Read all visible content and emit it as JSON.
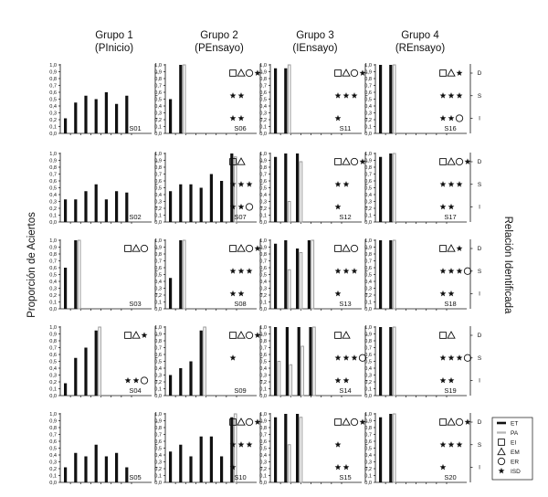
{
  "figure": {
    "ylabel": "Proporción de Aciertos",
    "right_label": "Relación Identificada",
    "relation_ticks": [
      "D",
      "S",
      "I"
    ],
    "yticks": [
      "1,0",
      "0,9",
      "0,8",
      "0,7",
      "0,6",
      "0,5",
      "0,4",
      "0,3",
      "0,2",
      "0,1",
      "0,0"
    ]
  },
  "groups": [
    {
      "title": "Grupo 1",
      "subtitle": "(PInicio)"
    },
    {
      "title": "Grupo 2",
      "subtitle": "(PEnsayo)"
    },
    {
      "title": "Grupo 3",
      "subtitle": "(IEnsayo)"
    },
    {
      "title": "Grupo 4",
      "subtitle": "(REnsayo)"
    }
  ],
  "legend": [
    {
      "label": "ET",
      "symbol": "thick-bar"
    },
    {
      "label": "PA",
      "symbol": "thin-bar"
    },
    {
      "label": "EI",
      "symbol": "square"
    },
    {
      "label": "EM",
      "symbol": "triangle"
    },
    {
      "label": "ER",
      "symbol": "circle"
    },
    {
      "label": "ISD",
      "symbol": "star"
    }
  ],
  "chart_data": {
    "type": "bar",
    "ylim": [
      0,
      1
    ],
    "panels": [
      {
        "subject": "S01",
        "group": 1,
        "row": 1,
        "bars": [
          [
            "ET",
            0.22
          ],
          [
            "ET",
            0.45
          ],
          [
            "ET",
            0.55
          ],
          [
            "ET",
            0.5
          ],
          [
            "ET",
            0.6
          ],
          [
            "ET",
            0.43
          ],
          [
            "ET",
            0.55
          ]
        ],
        "D": [],
        "S": [],
        "I": []
      },
      {
        "subject": "S06",
        "group": 2,
        "row": 1,
        "bars": [
          [
            "ET",
            0.5
          ],
          [
            "ET",
            1.0
          ],
          [
            "PA",
            1.0
          ]
        ],
        "D": [
          "EI",
          "EM",
          "ER",
          "ISD"
        ],
        "S": [
          "ISD",
          "ISD"
        ],
        "I": [
          "ISD",
          "ISD"
        ]
      },
      {
        "subject": "S11",
        "group": 3,
        "row": 1,
        "bars": [
          [
            "ET",
            0.95
          ],
          [
            "ET",
            0.95
          ],
          [
            "PA",
            1.0
          ]
        ],
        "D": [
          "EI",
          "EM",
          "ER",
          "ISD"
        ],
        "S": [
          "ISD",
          "ISD",
          "ISD"
        ],
        "I": [
          "ISD"
        ]
      },
      {
        "subject": "S16",
        "group": 4,
        "row": 1,
        "bars": [
          [
            "ET",
            1.0
          ],
          [
            "ET",
            1.0
          ],
          [
            "PA",
            1.0
          ]
        ],
        "D": [
          "EI",
          "EM",
          "ISD"
        ],
        "S": [
          "ISD",
          "ISD",
          "ISD"
        ],
        "I": [
          "ISD",
          "ISD",
          "ER"
        ]
      },
      {
        "subject": "S02",
        "group": 1,
        "row": 2,
        "bars": [
          [
            "ET",
            0.33
          ],
          [
            "ET",
            0.33
          ],
          [
            "ET",
            0.45
          ],
          [
            "ET",
            0.55
          ],
          [
            "ET",
            0.33
          ],
          [
            "ET",
            0.45
          ],
          [
            "ET",
            0.43
          ]
        ],
        "D": [],
        "S": [],
        "I": []
      },
      {
        "subject": "S07",
        "group": 2,
        "row": 2,
        "bars": [
          [
            "ET",
            0.45
          ],
          [
            "ET",
            0.55
          ],
          [
            "ET",
            0.55
          ],
          [
            "ET",
            0.5
          ],
          [
            "ET",
            0.7
          ],
          [
            "ET",
            0.6
          ],
          [
            "ET",
            1.0
          ],
          [
            "PA",
            0.95
          ]
        ],
        "D": [
          "EI",
          "EM"
        ],
        "S": [
          "ISD",
          "ISD",
          "ISD"
        ],
        "I": [
          "ISD",
          "ISD",
          "ER"
        ]
      },
      {
        "subject": "S12",
        "group": 3,
        "row": 2,
        "bars": [
          [
            "ET",
            0.95
          ],
          [
            "ET",
            1.0
          ],
          [
            "PA",
            0.3
          ],
          [
            "ET",
            1.0
          ],
          [
            "PA",
            0.88
          ]
        ],
        "D": [
          "EI",
          "EM",
          "ER",
          "ISD"
        ],
        "S": [
          "ISD",
          "ISD"
        ],
        "I": [
          "ISD"
        ]
      },
      {
        "subject": "S17",
        "group": 4,
        "row": 2,
        "bars": [
          [
            "ET",
            0.95
          ],
          [
            "ET",
            1.0
          ],
          [
            "PA",
            1.0
          ]
        ],
        "D": [
          "EI",
          "EM",
          "ER",
          "ISD"
        ],
        "S": [
          "ISD",
          "ISD",
          "ISD"
        ],
        "I": [
          "ISD",
          "ISD"
        ]
      },
      {
        "subject": "S03",
        "group": 1,
        "row": 3,
        "bars": [
          [
            "ET",
            0.6
          ],
          [
            "ET",
            1.0
          ],
          [
            "PA",
            1.0
          ]
        ],
        "D": [
          "EI",
          "EM",
          "ER"
        ],
        "S": [],
        "I": []
      },
      {
        "subject": "S08",
        "group": 2,
        "row": 3,
        "bars": [
          [
            "ET",
            0.45
          ],
          [
            "ET",
            1.0
          ],
          [
            "PA",
            1.0
          ]
        ],
        "D": [
          "EI",
          "EM",
          "ER",
          "ISD"
        ],
        "S": [
          "ISD",
          "ISD",
          "ISD"
        ],
        "I": [
          "ISD",
          "ISD"
        ]
      },
      {
        "subject": "S13",
        "group": 3,
        "row": 3,
        "bars": [
          [
            "ET",
            0.95
          ],
          [
            "ET",
            1.0
          ],
          [
            "PA",
            0.57
          ],
          [
            "ET",
            0.88
          ],
          [
            "PA",
            0.82
          ],
          [
            "ET",
            1.0
          ],
          [
            "PA",
            1.0
          ]
        ],
        "D": [
          "EI",
          "EM",
          "ER"
        ],
        "S": [
          "ISD",
          "ISD",
          "ISD"
        ],
        "I": [
          "ISD"
        ]
      },
      {
        "subject": "S18",
        "group": 4,
        "row": 3,
        "bars": [
          [
            "ET",
            1.0
          ],
          [
            "ET",
            1.0
          ],
          [
            "PA",
            1.0
          ]
        ],
        "D": [
          "EI",
          "EM",
          "ISD"
        ],
        "S": [
          "ISD",
          "ISD",
          "ISD",
          "ER"
        ],
        "I": [
          "ISD",
          "ISD"
        ]
      },
      {
        "subject": "S04",
        "group": 1,
        "row": 4,
        "bars": [
          [
            "ET",
            0.18
          ],
          [
            "ET",
            0.55
          ],
          [
            "ET",
            0.7
          ],
          [
            "ET",
            0.95
          ],
          [
            "PA",
            1.0
          ]
        ],
        "D": [
          "EI",
          "EM",
          "ISD"
        ],
        "S": [],
        "I": [
          "ISD",
          "ISD",
          "ER"
        ]
      },
      {
        "subject": "S09",
        "group": 2,
        "row": 4,
        "bars": [
          [
            "ET",
            0.3
          ],
          [
            "ET",
            0.4
          ],
          [
            "ET",
            0.5
          ],
          [
            "ET",
            0.95
          ],
          [
            "PA",
            1.0
          ]
        ],
        "D": [
          "EI",
          "EM",
          "ER",
          "ISD"
        ],
        "S": [
          "ISD"
        ],
        "I": []
      },
      {
        "subject": "S14",
        "group": 3,
        "row": 4,
        "bars": [
          [
            "ET",
            1.0
          ],
          [
            "PA",
            0.5
          ],
          [
            "ET",
            1.0
          ],
          [
            "PA",
            0.45
          ],
          [
            "ET",
            1.0
          ],
          [
            "PA",
            0.72
          ],
          [
            "ET",
            1.0
          ],
          [
            "PA",
            1.0
          ]
        ],
        "D": [
          "EI",
          "EM"
        ],
        "S": [
          "ISD",
          "ISD",
          "ISD",
          "ER"
        ],
        "I": [
          "ISD",
          "ISD"
        ]
      },
      {
        "subject": "S19",
        "group": 4,
        "row": 4,
        "bars": [
          [
            "ET",
            1.0
          ],
          [
            "ET",
            1.0
          ],
          [
            "PA",
            1.0
          ]
        ],
        "D": [
          "EI",
          "EM"
        ],
        "S": [
          "ISD",
          "ISD",
          "ISD",
          "ER"
        ],
        "I": [
          "ISD",
          "ISD"
        ]
      },
      {
        "subject": "S05",
        "group": 1,
        "row": 5,
        "bars": [
          [
            "ET",
            0.22
          ],
          [
            "ET",
            0.43
          ],
          [
            "ET",
            0.38
          ],
          [
            "ET",
            0.55
          ],
          [
            "ET",
            0.38
          ],
          [
            "ET",
            0.43
          ],
          [
            "ET",
            0.22
          ]
        ],
        "D": [],
        "S": [],
        "I": []
      },
      {
        "subject": "S10",
        "group": 2,
        "row": 5,
        "bars": [
          [
            "ET",
            0.45
          ],
          [
            "ET",
            0.55
          ],
          [
            "ET",
            0.38
          ],
          [
            "ET",
            0.67
          ],
          [
            "ET",
            0.67
          ],
          [
            "ET",
            0.38
          ],
          [
            "ET",
            0.95
          ],
          [
            "PA",
            1.0
          ]
        ],
        "D": [
          "EI",
          "EM",
          "ER",
          "ISD"
        ],
        "S": [
          "ISD",
          "ISD",
          "ISD"
        ],
        "I": [
          "ISD"
        ]
      },
      {
        "subject": "S15",
        "group": 3,
        "row": 5,
        "bars": [
          [
            "ET",
            0.95
          ],
          [
            "ET",
            1.0
          ],
          [
            "PA",
            0.55
          ],
          [
            "ET",
            1.0
          ],
          [
            "PA",
            0.95
          ]
        ],
        "D": [
          "EI",
          "EM",
          "ER",
          "ISD"
        ],
        "S": [
          "ISD"
        ],
        "I": [
          "ISD",
          "ISD"
        ]
      },
      {
        "subject": "S20",
        "group": 4,
        "row": 5,
        "bars": [
          [
            "ET",
            0.95
          ],
          [
            "ET",
            1.0
          ],
          [
            "PA",
            1.0
          ]
        ],
        "D": [
          "EI",
          "EM",
          "ER",
          "ISD"
        ],
        "S": [
          "ISD",
          "ISD",
          "ISD"
        ],
        "I": [
          "ISD"
        ]
      }
    ]
  }
}
